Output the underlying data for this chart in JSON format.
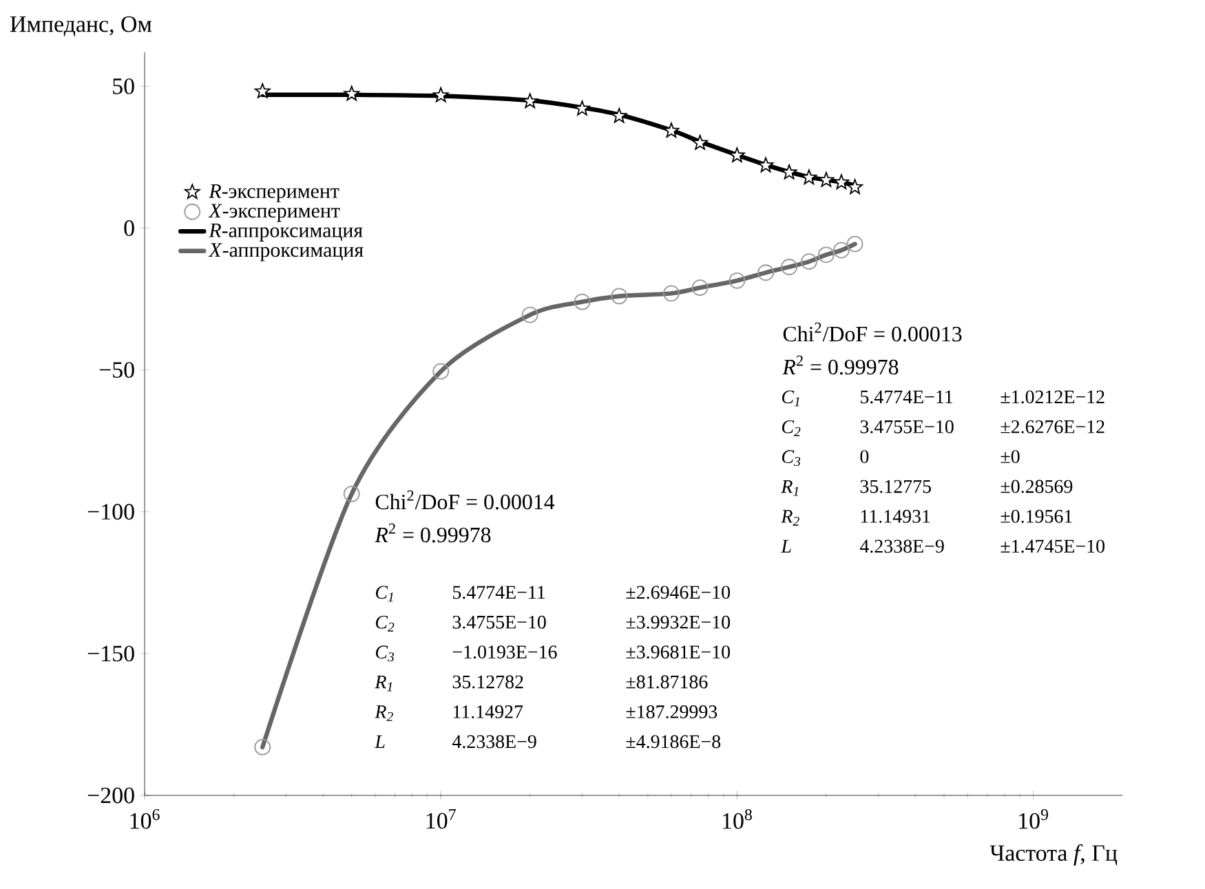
{
  "chart_data": {
    "type": "scatter",
    "ylabel": "Импеданс, Ом",
    "xlabel": "Частота *f*, Гц",
    "log": "x",
    "xlim": [
      1000000,
      2000000000
    ],
    "ylim": [
      -200,
      62
    ],
    "xticks": [
      {
        "value": 1000000,
        "label": "10$^{6}$"
      },
      {
        "value": 10000000,
        "label": "10$^{7}$"
      },
      {
        "value": 100000000,
        "label": "10$^{8}$"
      },
      {
        "value": 1000000000,
        "label": "10$^{9}$"
      }
    ],
    "yticks": [
      {
        "value": -200,
        "label": "−200"
      },
      {
        "value": -150,
        "label": "−150"
      },
      {
        "value": -100,
        "label": "−100"
      },
      {
        "value": -50,
        "label": "−50"
      },
      0,
      50
    ],
    "legend": "top left",
    "grid": false,
    "x": [
      2500000,
      5000000,
      10000000,
      20000000,
      30000000,
      40000000,
      60000000,
      75000000,
      100000000,
      125000000,
      150000000,
      175000000,
      200000000,
      225000000,
      250000000
    ],
    "series": [
      {
        "name": "*R*-эксперимент",
        "type": "scatter",
        "marker": "star",
        "color": "#000000",
        "values": [
          48.2,
          47.3,
          46.8,
          44.7,
          42.1,
          39.5,
          34.3,
          30.0,
          25.6,
          22.1,
          19.6,
          17.8,
          16.9,
          16.1,
          14.4
        ]
      },
      {
        "name": "*X*-эксперимент",
        "type": "scatter",
        "marker": "circle",
        "color": "#999999",
        "values": [
          -183,
          -93.7,
          -50.5,
          -30.6,
          -26,
          -24,
          -23,
          -21,
          -18.5,
          -15.7,
          -13.7,
          -11.8,
          -9.4,
          -7.8,
          -5.6
        ]
      },
      {
        "name": "*R*-аппроксимация",
        "type": "line",
        "line_style": "solid",
        "color": "#000000",
        "values": [
          47,
          47,
          46.6,
          45,
          42.5,
          40,
          34.5,
          30.5,
          25.8,
          22.3,
          19.8,
          18,
          17,
          16.2,
          15
        ]
      },
      {
        "name": "*X*-аппроксимация",
        "type": "line",
        "line_style": "solid",
        "color": "#666666",
        "values": [
          -183,
          -93.7,
          -50.5,
          -30.6,
          -26,
          -24,
          -23,
          -21,
          -18.5,
          -15.7,
          -13.7,
          -11.8,
          -9.4,
          -7.8,
          -5.6
        ]
      }
    ],
    "annotations": [
      "Chi$^{2}$/DoF = 0.00013",
      "*R*$^{2}$ = 0.99978",
      "C$_{1}$",
      "5.4774E−11",
      "±1.0212E−12",
      "C$_{2}$",
      "3.4755E−10",
      "±2.6276E−12",
      "C$_{3}$",
      "0",
      "±0",
      "R$_{1}$",
      "35.12775",
      "±0.28569",
      "R$_{2}$",
      "11.14931",
      "±0.19561",
      "L",
      "4.2338E−9",
      "±1.4745E−10",
      "Chi$^{2}$/DoF = 0.00014",
      "*R*$^{2}$ = 0.99978",
      "C$_{1}$",
      "5.4774E−11",
      "±2.6946E−10",
      "C$_{2}$",
      "3.4755E−10",
      "±3.9932E−10",
      "C$_{3}$",
      "−1.0193E−16",
      "±3.9681E−10",
      "R$_{1}$",
      "35.12782",
      "±81.87186",
      "R$_{2}$",
      "11.14927",
      "±187.29993",
      "L",
      "4.2338E−9",
      "±4.9186E−8"
    ]
  }
}
